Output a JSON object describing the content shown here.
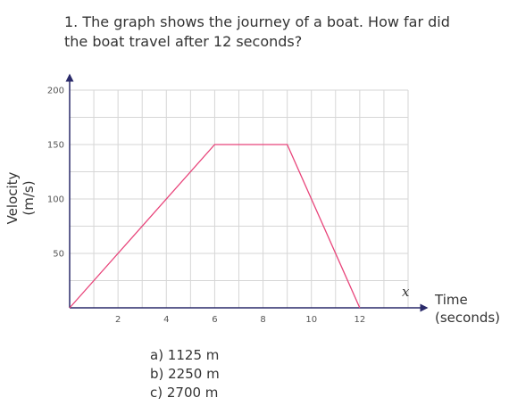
{
  "question": "1. The graph shows the journey of a boat. How far did the boat travel after 12 seconds?",
  "answers": [
    "a)  1125 m",
    "b)  2250 m",
    "c) 2700 m"
  ],
  "axis_labels": {
    "y_line1": "Velocity",
    "y_line2": "(m/s)",
    "x_line1": "Time",
    "x_line2": "(seconds)",
    "x_symbol": "x"
  },
  "chart_data": {
    "type": "line",
    "title": "",
    "xlabel": "Time (seconds)",
    "ylabel": "Velocity (m/s)",
    "xlim": [
      0,
      14
    ],
    "ylim": [
      0,
      200
    ],
    "x_ticks": [
      2,
      4,
      6,
      8,
      10,
      12
    ],
    "y_ticks": [
      50,
      100,
      150,
      200
    ],
    "x_minor_step": 1,
    "y_minor_step": 25,
    "grid": true,
    "series": [
      {
        "color": "#e8447a",
        "points": [
          [
            0,
            0
          ],
          [
            6,
            150
          ],
          [
            9,
            150
          ],
          [
            12,
            0
          ]
        ]
      }
    ],
    "grid_color": "#d6d6d6",
    "axis_color": "#2a2a6a"
  }
}
